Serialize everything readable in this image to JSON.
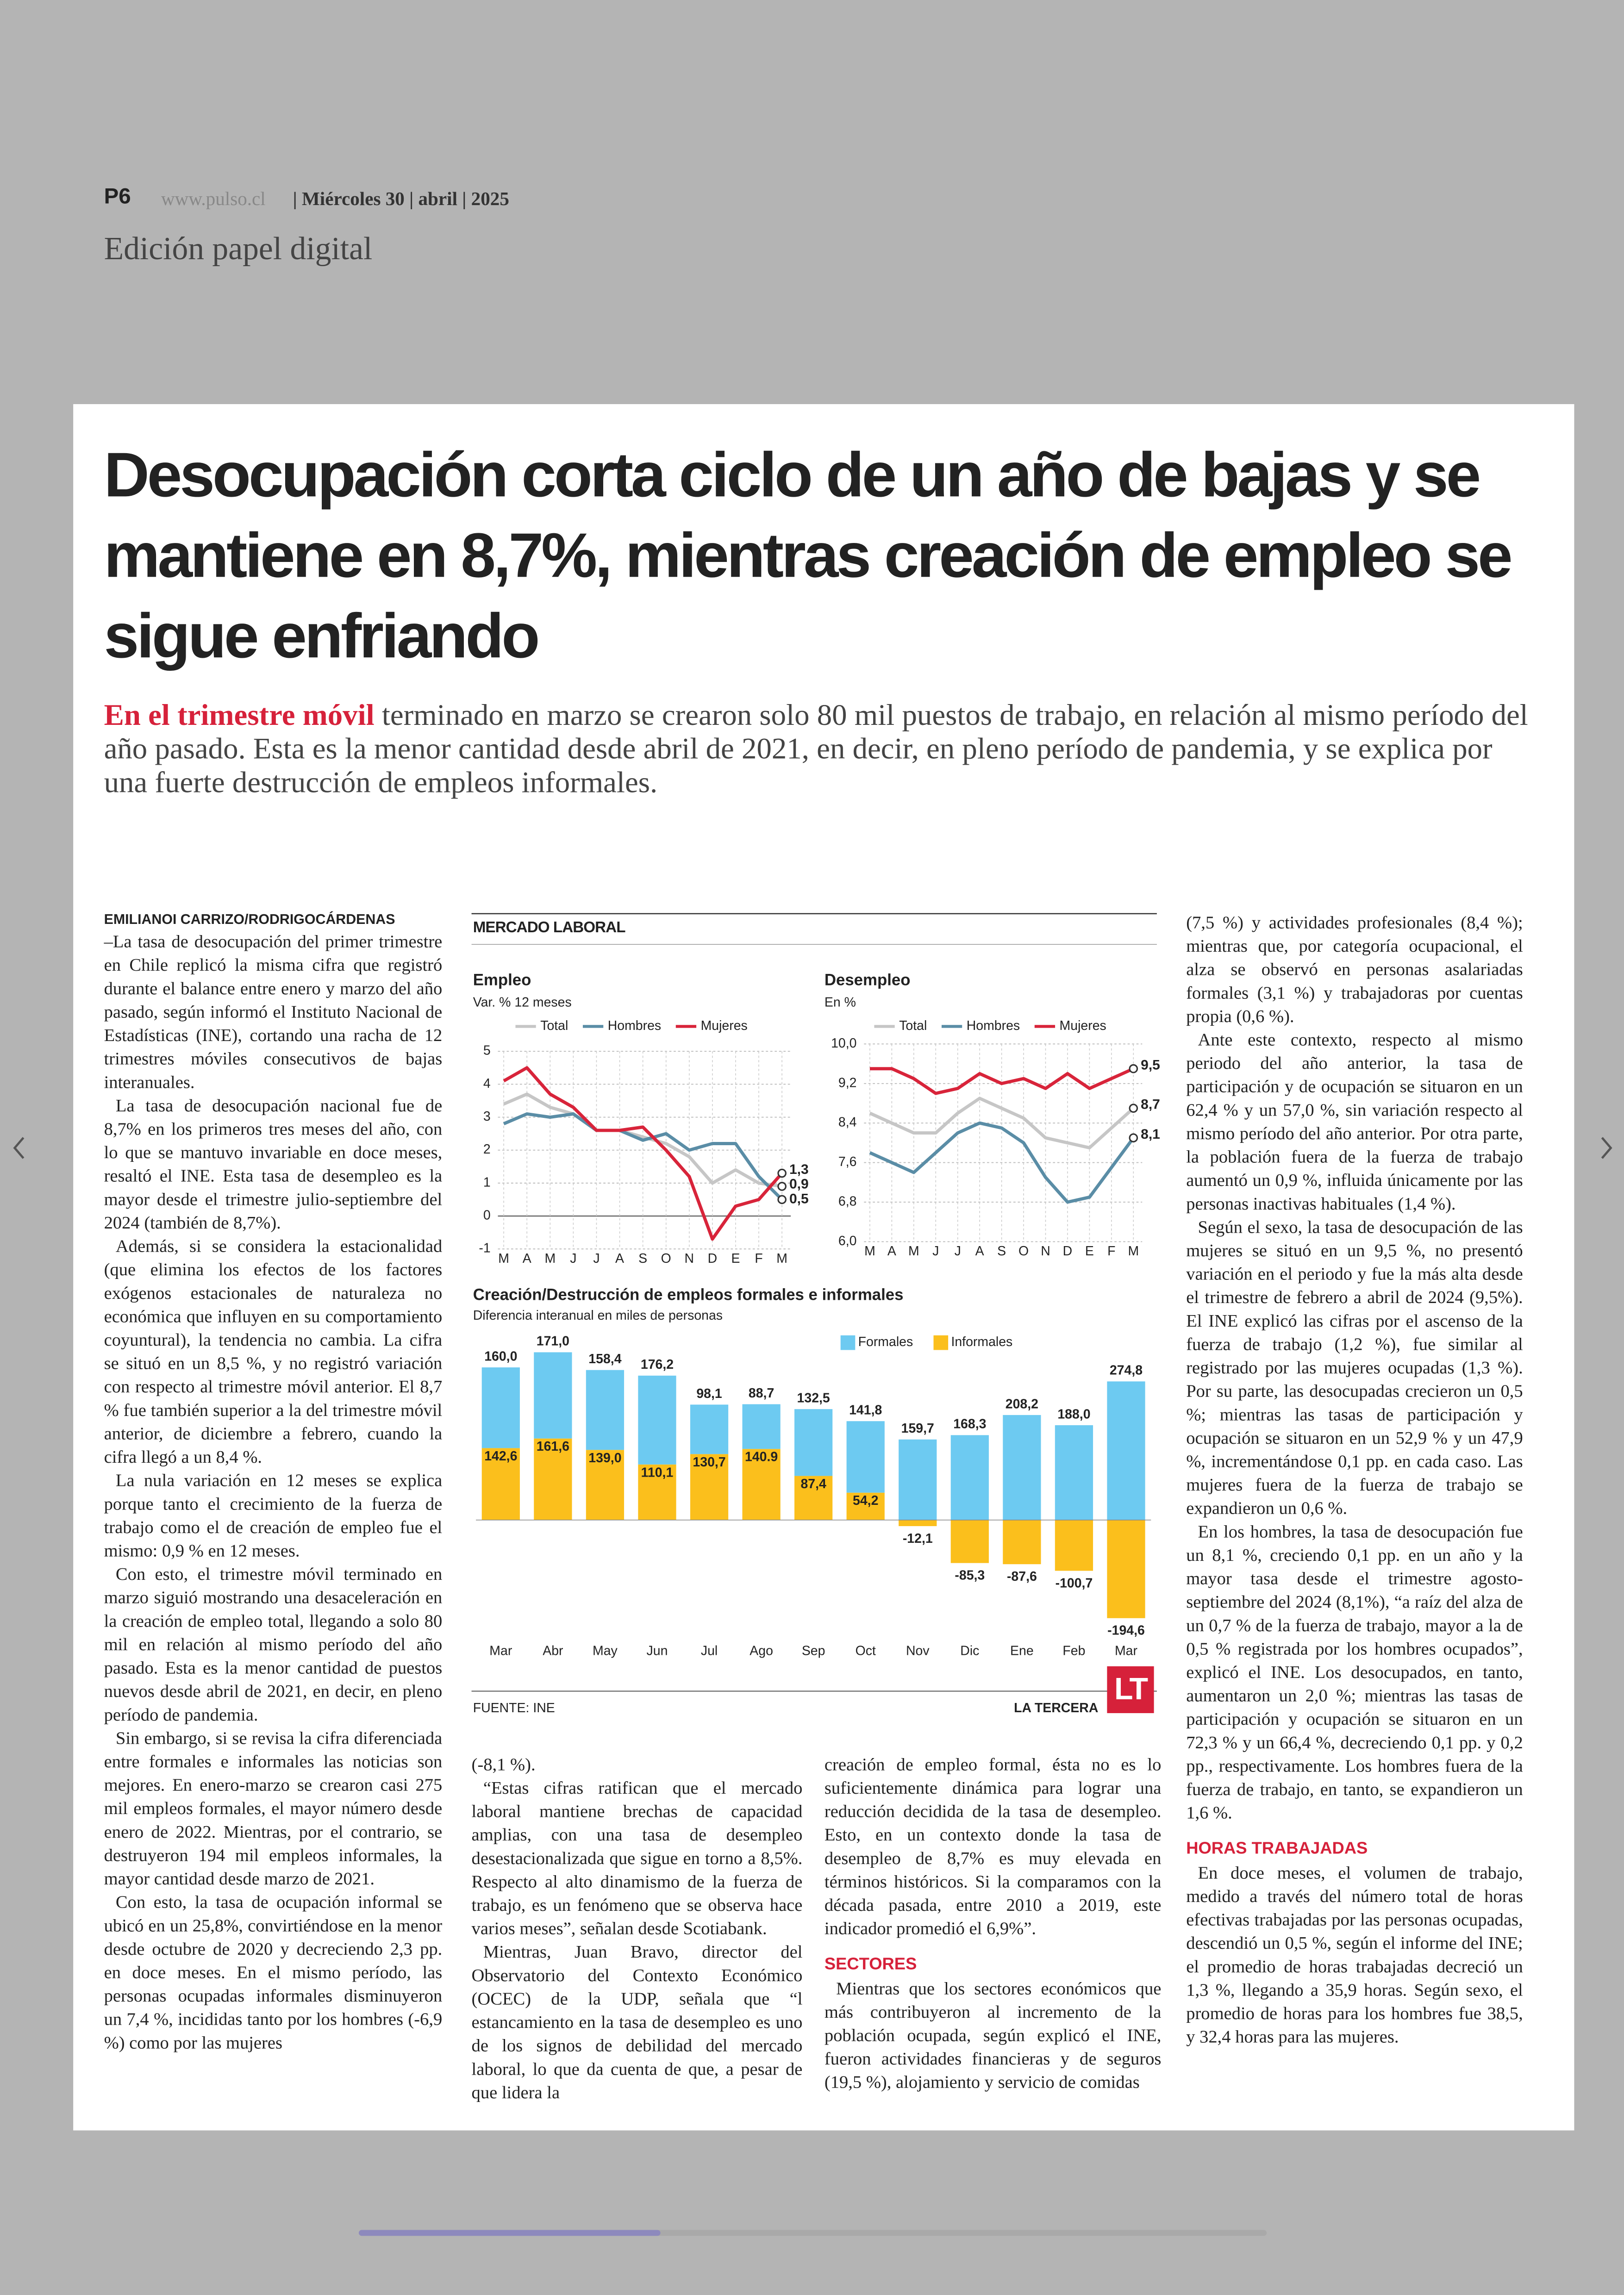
{
  "header": {
    "page": "P6",
    "site": "www.pulso.cl",
    "dateline": "| Miércoles 30 | abril | 2025",
    "edition": "Edición papel digital"
  },
  "article": {
    "headline": "Desocupación corta ciclo de un año de bajas y se mantiene en 8,7%, mientras creación de empleo se sigue enfriando",
    "lead_highlight": "En el trimestre móvil",
    "lead_text": "terminado en marzo se crearon solo 80 mil puestos de trabajo, en relación al mismo período del año pasado. Esta es la menor cantidad desde abril de 2021, en decir, en pleno período de pandemia, y se explica por una fuerte destrucción de empleos informales.",
    "byline": "EMILIANOI CARRIZO/RODRIGOCÁRDENAS",
    "columns": [
      [
        {
          "text": "–La tasa de desocupación del primer trimestre en Chile replicó la misma cifra que registró durante el balance entre enero y marzo del año pasado, según informó el Instituto Nacional de Estadísticas (INE), cortando una racha de 12 trimestres móviles consecutivos de bajas interanuales."
        },
        {
          "text": "La tasa de desocupación nacional fue de 8,7% en los primeros tres meses del año, con lo que se mantuvo invariable en doce meses, resaltó el INE. Esta tasa de desempleo es la mayor desde el trimestre julio-septiembre del 2024 (también de 8,7%)."
        },
        {
          "text": "Además, si se considera la estacionalidad (que elimina los efectos de los factores exógenos estacionales de naturaleza no económica que influyen en su comportamiento coyuntural), la tendencia no cambia. La cifra se situó en un 8,5 %, y no registró variación con respecto al trimestre móvil anterior. El 8,7 % fue también superior a la del trimestre móvil anterior, de diciembre a febrero, cuando la cifra llegó a un 8,4 %."
        },
        {
          "text": "La nula variación en 12 meses se explica porque tanto el crecimiento de la fuerza de trabajo como el de creación de empleo fue el mismo: 0,9 % en 12 meses."
        },
        {
          "text": "Con esto, el trimestre móvil terminado en marzo siguió mostrando una desaceleración en la creación de empleo total, llegando a solo 80 mil en relación al mismo período del año pasado. Esta es la menor cantidad de puestos nuevos desde abril de 2021, en decir, en pleno período de pandemia."
        },
        {
          "text": "Sin embargo, si se revisa la cifra diferenciada entre formales e informales las noticias son mejores. En enero-marzo se crearon casi 275 mil empleos formales, el mayor número desde enero de 2022. Mientras, por el contrario, se destruyeron 194 mil empleos informales, la mayor cantidad desde marzo de 2021."
        },
        {
          "text": "Con esto, la tasa de ocupación informal se ubicó en un 25,8%, convirtiéndose en la menor desde octubre de 2020 y decreciendo 2,3 pp. en doce meses. En el mismo período, las personas ocupadas informales disminuyeron un 7,4 %, incididas tanto por los hombres (-6,9 %) como por las mujeres"
        }
      ],
      [
        {
          "text": "(-8,1 %)."
        },
        {
          "text": "“Estas cifras ratifican que el mercado laboral mantiene brechas de capacidad amplias, con una tasa de desempleo desestacionalizada que sigue en torno a 8,5%. Respecto al alto dinamismo de la fuerza de trabajo, es un fenómeno que se observa hace varios meses”, señalan desde Scotiabank."
        },
        {
          "text": "Mientras, Juan Bravo, director del Observatorio del Contexto Económico (OCEC) de la UDP, señala que “l estancamiento en la tasa de desempleo es uno de los signos de debilidad del mercado laboral, lo que da cuenta de que, a pesar de que lidera la"
        }
      ],
      [
        {
          "text": "creación de empleo formal, ésta no es lo suficientemente dinámica para lograr una reducción decidida de la tasa de desempleo. Esto, en un contexto donde la tasa de desempleo de 8,7% es muy elevada en términos históricos. Si la comparamos con la década pasada, entre 2010 a 2019, este indicador promedió el 6,9%”."
        },
        {
          "heading": "SECTORES"
        },
        {
          "text": "Mientras que los sectores económicos que más contribuyeron al incremento de la población ocupada, según explicó el INE, fueron actividades financieras y de seguros (19,5 %), alojamiento y servicio de comidas"
        }
      ],
      [
        {
          "text": "(7,5 %) y actividades profesionales (8,4 %); mientras que, por categoría ocupacional, el alza se observó en personas asalariadas formales (3,1 %) y trabajadoras por cuentas propia (0,6 %)."
        },
        {
          "text": "Ante este contexto, respecto al mismo periodo del año anterior, la tasa de participación y de ocupación se situaron en un 62,4 % y un 57,0 %, sin variación respecto al mismo período del año anterior. Por otra parte, la población fuera de la fuerza de trabajo aumentó un 0,9 %, influida únicamente por las personas inactivas habituales (1,4 %)."
        },
        {
          "text": "Según el sexo, la tasa de desocupación de las mujeres se situó en un 9,5 %, no presentó variación en el periodo y fue la más alta desde el trimestre de febrero a abril de 2024 (9,5%). El INE explicó las cifras por el ascenso de la fuerza de trabajo (1,2 %), fue similar al registrado por las mujeres ocupadas (1,3 %). Por su parte, las desocupadas crecieron un 0,5 %; mientras las tasas de participación y ocupación se situaron en un 52,9 % y un 47,9 %, incrementándose 0,1 pp. en cada caso. Las mujeres fuera de la fuerza de trabajo se expandieron un 0,6 %."
        },
        {
          "text": "En los hombres, la tasa de desocupación fue un 8,1 %, creciendo 0,1 pp. en un año y la mayor tasa desde el trimestre agosto-septiembre del 2024 (8,1%), “a raíz del alza de un 0,7 % de la fuerza de trabajo, mayor a la de 0,5 % registrada por los hombres ocupados”, explicó el INE. Los desocupados, en tanto, aumentaron un 2,0 %; mientras las tasas de participación y ocupación se situaron en un 72,3 % y un 66,4 %, decreciendo 0,1 pp. y 0,2 pp., respectivamente. Los hombres fuera de la fuerza de trabajo, en tanto, se expandieron un 1,6 %."
        },
        {
          "heading": "HORAS TRABAJADAS"
        },
        {
          "text": "En doce meses, el volumen de trabajo, medido a través del número total de horas efectivas trabajadas por las personas ocupadas, descendió un 0,5 %, según el informe del INE; el promedio de horas trabajadas decreció un 1,3 %, llegando a 35,9 horas. Según sexo, el promedio de horas para los hombres fue 38,5, y 32,4 horas para las mujeres."
        }
      ]
    ]
  },
  "chart_block": {
    "title": "MERCADO LABORAL",
    "source": "FUENTE: INE",
    "brand": "LA TERCERA",
    "logo": "LT"
  },
  "chart_data": [
    {
      "type": "line",
      "title": "Empleo",
      "subtitle": "Var. % 12 meses",
      "categories": [
        "M",
        "A",
        "M",
        "J",
        "J",
        "A",
        "S",
        "O",
        "N",
        "D",
        "E",
        "F",
        "M"
      ],
      "series": [
        {
          "name": "Total",
          "color": "#c6c6c6",
          "values": [
            3.4,
            3.7,
            3.3,
            3.1,
            2.6,
            2.6,
            2.4,
            2.2,
            1.8,
            1.0,
            1.4,
            1.0,
            0.9
          ],
          "end_label": "0,9"
        },
        {
          "name": "Hombres",
          "color": "#5a8da6",
          "values": [
            2.8,
            3.1,
            3.0,
            3.1,
            2.6,
            2.6,
            2.3,
            2.5,
            2.0,
            2.2,
            2.2,
            1.2,
            0.5
          ],
          "end_label": "0,5"
        },
        {
          "name": "Mujeres",
          "color": "#d8243a",
          "values": [
            4.1,
            4.5,
            3.7,
            3.3,
            2.6,
            2.6,
            2.7,
            2.0,
            1.2,
            -0.7,
            0.3,
            0.5,
            1.3
          ],
          "end_label": "1,3"
        }
      ],
      "ylim": [
        -1,
        5
      ],
      "yticks": [
        -1,
        0,
        1,
        2,
        3,
        4,
        5
      ],
      "grid": true
    },
    {
      "type": "line",
      "title": "Desempleo",
      "subtitle": "En %",
      "categories": [
        "M",
        "A",
        "M",
        "J",
        "J",
        "A",
        "S",
        "O",
        "N",
        "D",
        "E",
        "F",
        "M"
      ],
      "series": [
        {
          "name": "Total",
          "color": "#c6c6c6",
          "values": [
            8.6,
            8.4,
            8.2,
            8.2,
            8.6,
            8.9,
            8.7,
            8.5,
            8.1,
            8.0,
            7.9,
            8.3,
            8.7
          ],
          "end_label": "8,7"
        },
        {
          "name": "Hombres",
          "color": "#5a8da6",
          "values": [
            7.8,
            7.6,
            7.4,
            7.8,
            8.2,
            8.4,
            8.3,
            8.0,
            7.3,
            6.8,
            6.9,
            7.5,
            8.1
          ],
          "end_label": "8,1"
        },
        {
          "name": "Mujeres",
          "color": "#d8243a",
          "values": [
            9.5,
            9.5,
            9.3,
            9.0,
            9.1,
            9.4,
            9.2,
            9.3,
            9.1,
            9.4,
            9.1,
            9.3,
            9.5
          ],
          "end_label": "9,5"
        }
      ],
      "ylim": [
        6.0,
        10.0
      ],
      "yticks": [
        {
          "value": 6.0,
          "label": "6,0"
        },
        {
          "value": 6.8,
          "label": "6,8"
        },
        {
          "value": 7.6,
          "label": "7,6"
        },
        {
          "value": 8.4,
          "label": "8,4"
        },
        {
          "value": 9.2,
          "label": "9,2"
        },
        {
          "value": 10.0,
          "label": "10,0"
        }
      ],
      "grid": true
    },
    {
      "type": "bar",
      "stacked": true,
      "title": "Creación/Destrucción de empleos formales e informales",
      "subtitle": "Diferencia interanual en miles de personas",
      "categories": [
        "Mar",
        "Abr",
        "May",
        "Jun",
        "Jul",
        "Ago",
        "Sep",
        "Oct",
        "Nov",
        "Dic",
        "Ene",
        "Feb",
        "Mar"
      ],
      "series": [
        {
          "name": "Formales",
          "color": "#6dcaf1",
          "values": [
            160.0,
            171.0,
            158.4,
            176.2,
            98.1,
            88.7,
            132.5,
            141.8,
            159.7,
            168.3,
            208.2,
            188.0,
            274.8
          ],
          "value_labels": [
            "160,0",
            "171,0",
            "158,4",
            "176,2",
            "98,1",
            "88,7",
            "132,5",
            "141,8",
            "159,7",
            "168,3",
            "208,2",
            "188,0",
            "274,8"
          ]
        },
        {
          "name": "Informales",
          "color": "#fbbf1c",
          "values": [
            142.6,
            161.6,
            139.0,
            110.1,
            130.7,
            140.9,
            87.4,
            54.2,
            -12.1,
            -85.3,
            -87.6,
            -100.7,
            -194.6
          ],
          "value_labels": [
            "142,6",
            "161,6",
            "139,0",
            "110,1",
            "130,7",
            "140.9",
            "87,4",
            "54,2",
            "-12,1",
            "-85,3",
            "-87,6",
            "-100,7",
            "-194,6"
          ]
        }
      ],
      "ylim": [
        -200,
        340
      ]
    }
  ]
}
